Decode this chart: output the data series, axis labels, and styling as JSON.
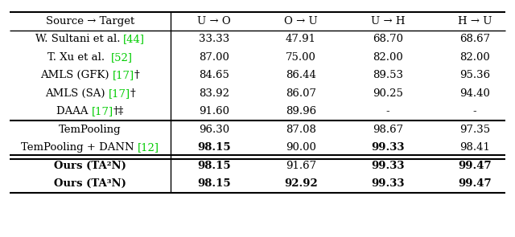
{
  "col_headers": [
    "Source → Target",
    "U → O",
    "O → U",
    "U → H",
    "H → U"
  ],
  "rows_g1": [
    {
      "parts": [
        {
          "text": "W. Sultani et al. ",
          "color": "black",
          "bold": false
        },
        {
          "text": "[44]",
          "color": "#00cc00",
          "bold": false
        }
      ],
      "values": [
        "33.33",
        "47.91",
        "68.70",
        "68.67"
      ],
      "bold": [
        false,
        false,
        false,
        false
      ]
    },
    {
      "parts": [
        {
          "text": "T. Xu et al.  ",
          "color": "black",
          "bold": false
        },
        {
          "text": "[52]",
          "color": "#00cc00",
          "bold": false
        }
      ],
      "values": [
        "87.00",
        "75.00",
        "82.00",
        "82.00"
      ],
      "bold": [
        false,
        false,
        false,
        false
      ]
    },
    {
      "parts": [
        {
          "text": "AMLS (GFK) ",
          "color": "black",
          "bold": false
        },
        {
          "text": "[17]",
          "color": "#00cc00",
          "bold": false
        },
        {
          "text": "†",
          "color": "black",
          "bold": false
        }
      ],
      "values": [
        "84.65",
        "86.44",
        "89.53",
        "95.36"
      ],
      "bold": [
        false,
        false,
        false,
        false
      ]
    },
    {
      "parts": [
        {
          "text": "AMLS (SA) ",
          "color": "black",
          "bold": false
        },
        {
          "text": "[17]",
          "color": "#00cc00",
          "bold": false
        },
        {
          "text": "†",
          "color": "black",
          "bold": false
        }
      ],
      "values": [
        "83.92",
        "86.07",
        "90.25",
        "94.40"
      ],
      "bold": [
        false,
        false,
        false,
        false
      ]
    },
    {
      "parts": [
        {
          "text": "DAAA ",
          "color": "black",
          "bold": false
        },
        {
          "text": "[17]",
          "color": "#00cc00",
          "bold": false
        },
        {
          "text": "†‡",
          "color": "black",
          "bold": false
        }
      ],
      "values": [
        "91.60",
        "89.96",
        "-",
        "-"
      ],
      "bold": [
        false,
        false,
        false,
        false
      ]
    }
  ],
  "rows_g2": [
    {
      "parts": [
        {
          "text": "TemPooling",
          "color": "black",
          "bold": false
        }
      ],
      "values": [
        "96.30",
        "87.08",
        "98.67",
        "97.35"
      ],
      "bold": [
        false,
        false,
        false,
        false
      ]
    },
    {
      "parts": [
        {
          "text": "TemPooling + DANN ",
          "color": "black",
          "bold": false
        },
        {
          "text": "[12]",
          "color": "#00cc00",
          "bold": false
        }
      ],
      "values": [
        "98.15",
        "90.00",
        "99.33",
        "98.41"
      ],
      "bold": [
        true,
        false,
        true,
        false
      ]
    }
  ],
  "rows_g3": [
    {
      "parts": [
        {
          "text": "Ours (TA²N)",
          "color": "black",
          "bold": true
        }
      ],
      "values": [
        "98.15",
        "91.67",
        "99.33",
        "99.47"
      ],
      "bold": [
        true,
        false,
        true,
        true
      ]
    },
    {
      "parts": [
        {
          "text": "Ours (TA³N)",
          "color": "black",
          "bold": true
        }
      ],
      "values": [
        "98.15",
        "92.92",
        "99.33",
        "99.47"
      ],
      "bold": [
        true,
        true,
        true,
        true
      ]
    }
  ]
}
